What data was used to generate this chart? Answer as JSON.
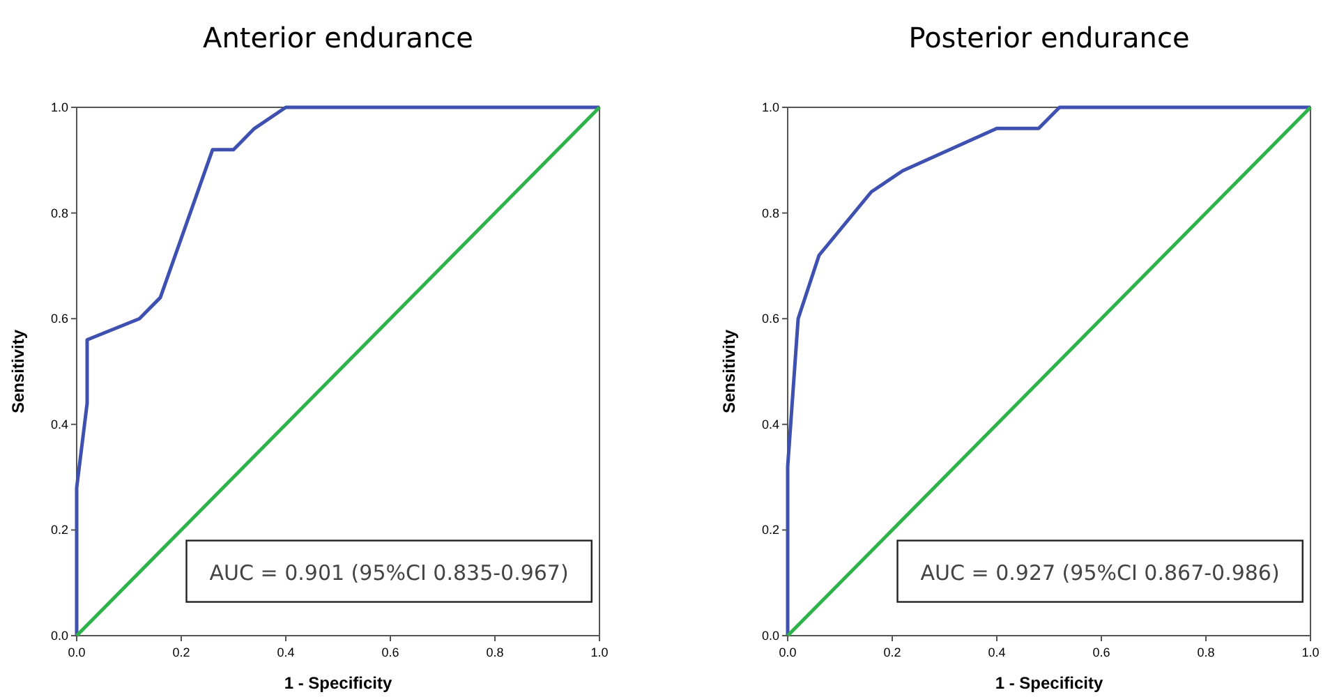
{
  "chart_data": [
    {
      "type": "line",
      "title": "Anterior endurance",
      "xlabel": "1 - Specificity",
      "ylabel": "Sensitivity",
      "xlim": [
        0,
        1
      ],
      "ylim": [
        0,
        1
      ],
      "xticks": [
        {
          "value": 0,
          "label": "0.0"
        },
        {
          "value": 0.2,
          "label": "0.2"
        },
        {
          "value": 0.4,
          "label": "0.4"
        },
        {
          "value": 0.6,
          "label": "0.6"
        },
        {
          "value": 0.8,
          "label": "0.8"
        },
        {
          "value": 1,
          "label": "1.0"
        }
      ],
      "yticks": [
        {
          "value": 0,
          "label": "0.0"
        },
        {
          "value": 0.2,
          "label": "0.2"
        },
        {
          "value": 0.4,
          "label": "0.4"
        },
        {
          "value": 0.6,
          "label": "0.6"
        },
        {
          "value": 0.8,
          "label": "0.8"
        },
        {
          "value": 1,
          "label": "1.0"
        }
      ],
      "series": [
        {
          "color": "#3f51b0",
          "x": [
            0,
            0,
            0.02,
            0.02,
            0.12,
            0.16,
            0.26,
            0.3,
            0.34,
            0.4,
            1
          ],
          "values": [
            0,
            0.28,
            0.44,
            0.56,
            0.6,
            0.64,
            0.92,
            0.92,
            0.96,
            1,
            1
          ]
        },
        {
          "color": "#2db34a",
          "x": [
            0,
            1
          ],
          "values": [
            0,
            1
          ]
        }
      ],
      "annotations": [
        "AUC = 0.901 (95%CI 0.835-0.967)"
      ],
      "grid": false,
      "marker": "none",
      "line_style": "solid"
    },
    {
      "type": "line",
      "title": "Posterior endurance",
      "xlabel": "1 - Specificity",
      "ylabel": "Sensitivity",
      "xlim": [
        0,
        1
      ],
      "ylim": [
        0,
        1
      ],
      "xticks": [
        {
          "value": 0,
          "label": "0.0"
        },
        {
          "value": 0.2,
          "label": "0.2"
        },
        {
          "value": 0.4,
          "label": "0.4"
        },
        {
          "value": 0.6,
          "label": "0.6"
        },
        {
          "value": 0.8,
          "label": "0.8"
        },
        {
          "value": 1,
          "label": "1.0"
        }
      ],
      "yticks": [
        {
          "value": 0,
          "label": "0.0"
        },
        {
          "value": 0.2,
          "label": "0.2"
        },
        {
          "value": 0.4,
          "label": "0.4"
        },
        {
          "value": 0.6,
          "label": "0.6"
        },
        {
          "value": 0.8,
          "label": "0.8"
        },
        {
          "value": 1,
          "label": "1.0"
        }
      ],
      "series": [
        {
          "color": "#3f51b0",
          "x": [
            0,
            0,
            0.02,
            0.06,
            0.16,
            0.22,
            0.4,
            0.48,
            0.52,
            1
          ],
          "values": [
            0,
            0.32,
            0.6,
            0.72,
            0.84,
            0.88,
            0.96,
            0.96,
            1,
            1
          ]
        },
        {
          "color": "#2db34a",
          "x": [
            0,
            1
          ],
          "values": [
            0,
            1
          ]
        }
      ],
      "annotations": [
        "AUC = 0.927 (95%CI 0.867-0.986)"
      ],
      "grid": false,
      "marker": "none",
      "line_style": "solid"
    }
  ]
}
